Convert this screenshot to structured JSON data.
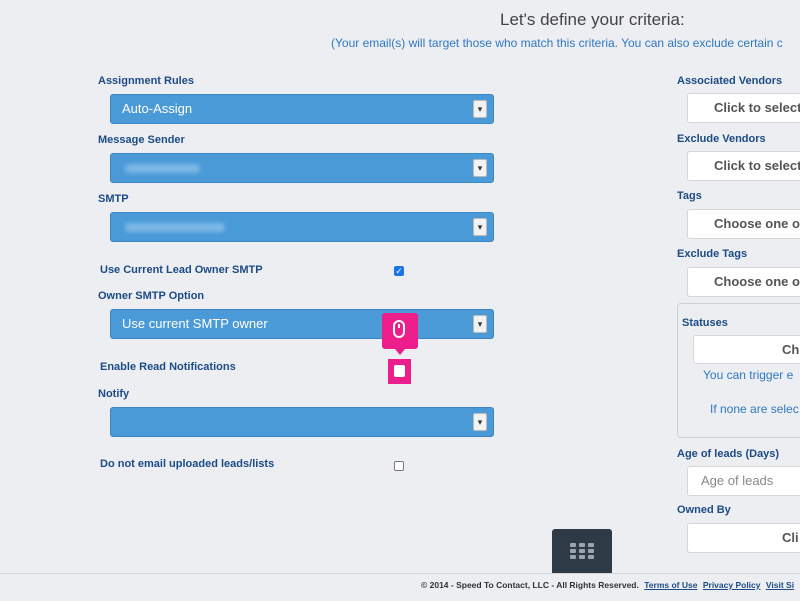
{
  "header": {
    "title": "Let's define your criteria:",
    "subtitle": "(Your email(s) will target those who match this criteria. You can also exclude certain c"
  },
  "form": {
    "assignment_rules": {
      "label": "Assignment Rules",
      "value": "Auto-Assign"
    },
    "message_sender": {
      "label": "Message Sender"
    },
    "smtp": {
      "label": "SMTP"
    },
    "use_current_owner_smtp": {
      "label": "Use Current Lead Owner SMTP",
      "checked": true
    },
    "owner_smtp_option": {
      "label": "Owner SMTP Option",
      "value": "Use current SMTP owner"
    },
    "enable_read_notifications": {
      "label": "Enable Read Notifications",
      "checked": false
    },
    "notify": {
      "label": "Notify",
      "value": ""
    },
    "do_not_email_uploaded": {
      "label": "Do not email uploaded leads/lists",
      "checked": false
    }
  },
  "right_panel": {
    "associated_vendors": {
      "label": "Associated Vendors",
      "button": "Click to select"
    },
    "exclude_vendors": {
      "label": "Exclude Vendors",
      "button": "Click to select"
    },
    "tags": {
      "label": "Tags",
      "button": "Choose one or"
    },
    "exclude_tags": {
      "label": "Exclude Tags",
      "button": "Choose one or"
    },
    "statuses": {
      "label": "Statuses",
      "button": "Ch",
      "info1": "You can trigger e",
      "info2": "If none are selec"
    },
    "age_of_leads": {
      "label": "Age of leads (Days)",
      "placeholder": "Age of leads"
    },
    "owned_by": {
      "label": "Owned By",
      "button": "Cli"
    }
  },
  "footer": {
    "copyright": "© 2014 - Speed To Contact, LLC - All Rights Reserved.",
    "terms": "Terms of Use",
    "privacy": "Privacy Policy",
    "visit": "Visit Si"
  },
  "colors": {
    "select_bg": "#4a9ad8",
    "label": "#1c4b86",
    "accent_pink": "#ec1e8c",
    "link_blue": "#2f78c4"
  },
  "icons": {
    "dropdown": "chevron-down-icon",
    "grid": "grid-menu-icon",
    "cursor": "mouse-click-icon"
  }
}
